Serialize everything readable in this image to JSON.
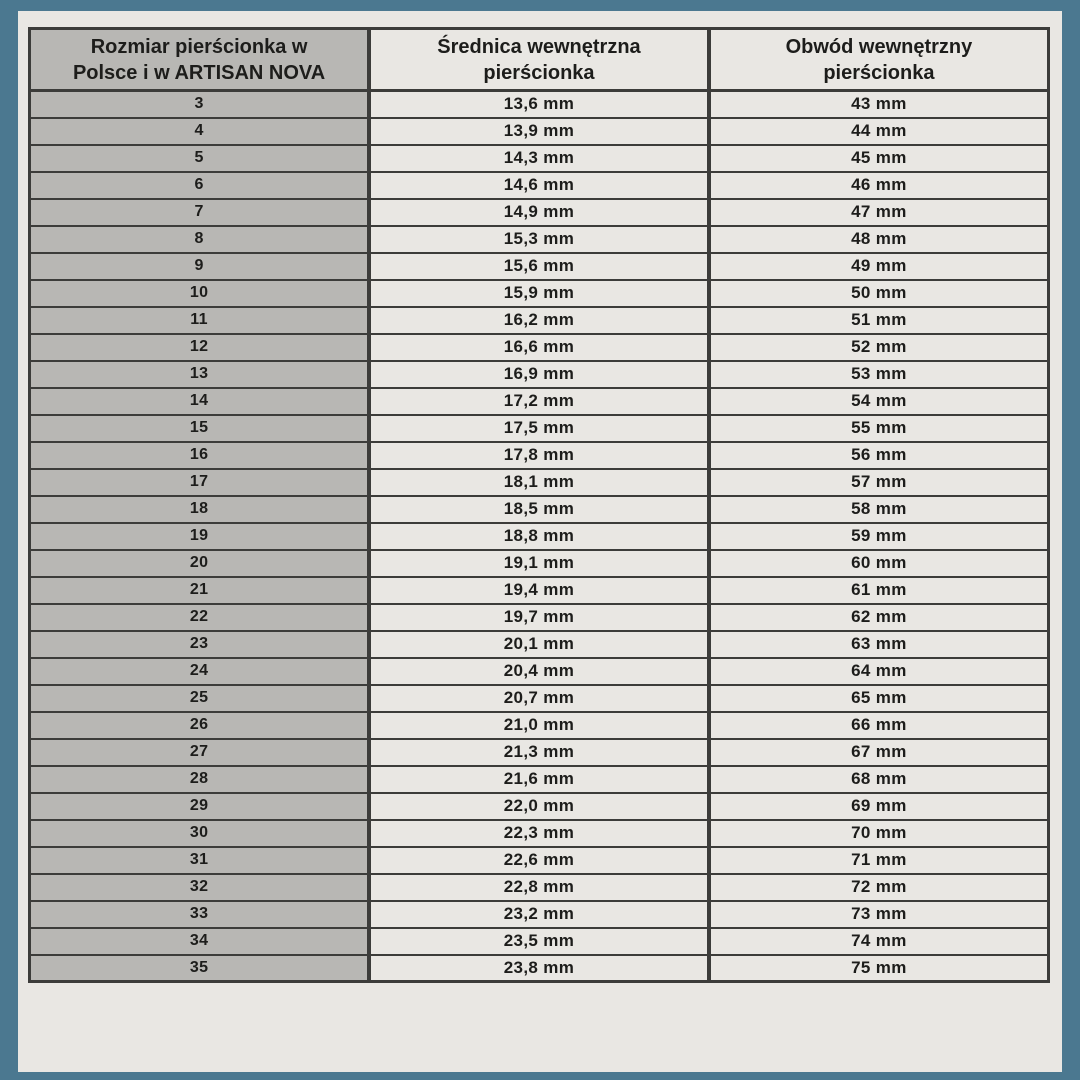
{
  "colors": {
    "frame_blue": "#4b7890",
    "panel_light": "#e9e7e3",
    "column_gray": "#b8b7b4",
    "border_dark": "#3c3c3a",
    "text_dark": "#1d1d1b"
  },
  "table": {
    "headers": {
      "size": "Rozmiar pierścionka w Polsce i w ARTISAN NOVA",
      "diameter": "Średnica wewnętrzna pierścionka",
      "circumference": "Obwód wewnętrzny pierścionka"
    }
  },
  "chart_data": {
    "type": "table",
    "columns": [
      "Rozmiar pierścionka w Polsce i w ARTISAN NOVA",
      "Średnica wewnętrzna pierścionka",
      "Obwód wewnętrzny pierścionka"
    ],
    "rows": [
      {
        "size": "3",
        "diameter": "13,6 mm",
        "circumference": "43 mm"
      },
      {
        "size": "4",
        "diameter": "13,9 mm",
        "circumference": "44 mm"
      },
      {
        "size": "5",
        "diameter": "14,3 mm",
        "circumference": "45 mm"
      },
      {
        "size": "6",
        "diameter": "14,6 mm",
        "circumference": "46 mm"
      },
      {
        "size": "7",
        "diameter": "14,9 mm",
        "circumference": "47 mm"
      },
      {
        "size": "8",
        "diameter": "15,3 mm",
        "circumference": "48 mm"
      },
      {
        "size": "9",
        "diameter": "15,6 mm",
        "circumference": "49 mm"
      },
      {
        "size": "10",
        "diameter": "15,9 mm",
        "circumference": "50 mm"
      },
      {
        "size": "11",
        "diameter": "16,2 mm",
        "circumference": "51 mm"
      },
      {
        "size": "12",
        "diameter": "16,6 mm",
        "circumference": "52 mm"
      },
      {
        "size": "13",
        "diameter": "16,9 mm",
        "circumference": "53 mm"
      },
      {
        "size": "14",
        "diameter": "17,2 mm",
        "circumference": "54 mm"
      },
      {
        "size": "15",
        "diameter": "17,5 mm",
        "circumference": "55 mm"
      },
      {
        "size": "16",
        "diameter": "17,8 mm",
        "circumference": "56 mm"
      },
      {
        "size": "17",
        "diameter": "18,1 mm",
        "circumference": "57 mm"
      },
      {
        "size": "18",
        "diameter": "18,5 mm",
        "circumference": "58 mm"
      },
      {
        "size": "19",
        "diameter": "18,8 mm",
        "circumference": "59 mm"
      },
      {
        "size": "20",
        "diameter": "19,1 mm",
        "circumference": "60 mm"
      },
      {
        "size": "21",
        "diameter": "19,4 mm",
        "circumference": "61 mm"
      },
      {
        "size": "22",
        "diameter": "19,7 mm",
        "circumference": "62 mm"
      },
      {
        "size": "23",
        "diameter": "20,1 mm",
        "circumference": "63 mm"
      },
      {
        "size": "24",
        "diameter": "20,4 mm",
        "circumference": "64 mm"
      },
      {
        "size": "25",
        "diameter": "20,7 mm",
        "circumference": "65 mm"
      },
      {
        "size": "26",
        "diameter": "21,0 mm",
        "circumference": "66 mm"
      },
      {
        "size": "27",
        "diameter": "21,3 mm",
        "circumference": "67 mm"
      },
      {
        "size": "28",
        "diameter": "21,6 mm",
        "circumference": "68 mm"
      },
      {
        "size": "29",
        "diameter": "22,0 mm",
        "circumference": "69 mm"
      },
      {
        "size": "30",
        "diameter": "22,3 mm",
        "circumference": "70 mm"
      },
      {
        "size": "31",
        "diameter": "22,6 mm",
        "circumference": "71 mm"
      },
      {
        "size": "32",
        "diameter": "22,8 mm",
        "circumference": "72 mm"
      },
      {
        "size": "33",
        "diameter": "23,2 mm",
        "circumference": "73 mm"
      },
      {
        "size": "34",
        "diameter": "23,5 mm",
        "circumference": "74 mm"
      },
      {
        "size": "35",
        "diameter": "23,8 mm",
        "circumference": "75 mm"
      }
    ]
  }
}
